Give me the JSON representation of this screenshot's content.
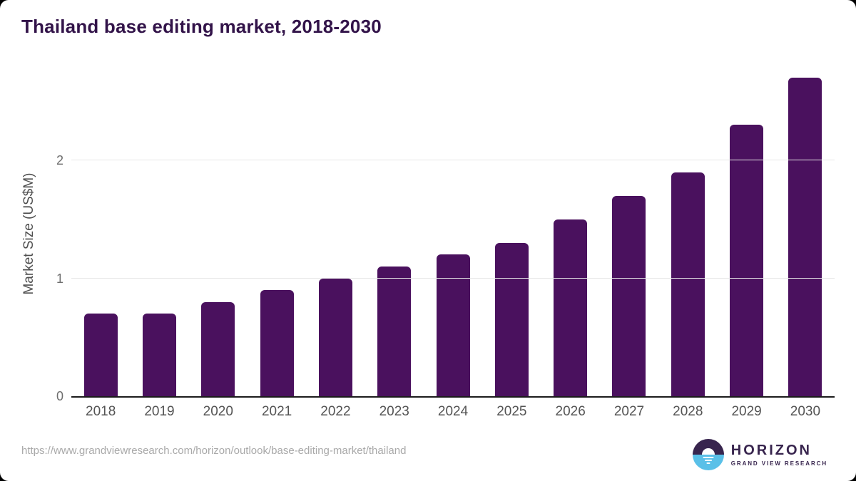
{
  "page": {
    "title": "Thailand base editing market, 2018-2030",
    "source_url": "https://www.grandviewresearch.com/horizon/outlook/base-editing-market/thailand"
  },
  "logo": {
    "name": "HORIZON",
    "subtitle": "GRAND VIEW RESEARCH"
  },
  "colors": {
    "bar": "#4a115e",
    "title": "#321349",
    "axis_line": "#1c1c1c",
    "gridline": "#e7e7e7",
    "tick_label": "#6e6e6e",
    "x_label": "#545454",
    "y_axis_title": "#4f4f4f",
    "url_text": "#a9a9a9",
    "logo_purple": "#38254e",
    "logo_blue": "#5ac0e8"
  },
  "chart_data": {
    "type": "bar",
    "title": "Thailand base editing market, 2018-2030",
    "categories": [
      "2018",
      "2019",
      "2020",
      "2021",
      "2022",
      "2023",
      "2024",
      "2025",
      "2026",
      "2027",
      "2028",
      "2029",
      "2030"
    ],
    "values": [
      0.7,
      0.7,
      0.8,
      0.9,
      1.0,
      1.1,
      1.2,
      1.3,
      1.5,
      1.7,
      1.9,
      2.3,
      2.7
    ],
    "xlabel": "",
    "ylabel": "Market Size (US$M)",
    "yticks": [
      0,
      1,
      2
    ],
    "ylim": [
      0,
      2.78
    ],
    "grid": "horizontal",
    "legend": "none",
    "bar_color": "#4a115e"
  }
}
